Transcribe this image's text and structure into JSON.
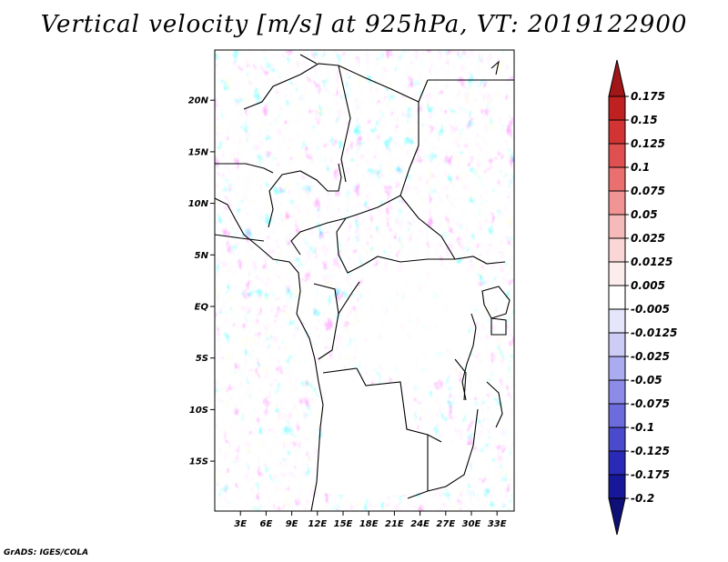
{
  "title": "Vertical velocity [m/s] at 925hPa, VT: 2019122900",
  "footer": "GrADS: IGES/COLA",
  "map": {
    "lon_range": [
      0,
      35
    ],
    "lat_range": [
      -20,
      24
    ],
    "lat_labels": [
      "20N",
      "15N",
      "10N",
      "5N",
      "EQ",
      "5S",
      "10S",
      "15S"
    ],
    "lon_labels": [
      "3E",
      "6E",
      "9E",
      "12E",
      "15E",
      "18E",
      "21E",
      "24E",
      "27E",
      "30E",
      "33E"
    ]
  },
  "colorbar": {
    "levels": [
      "0.175",
      "0.15",
      "0.125",
      "0.1",
      "0.075",
      "0.05",
      "0.025",
      "0.0125",
      "0.005",
      "-0.005",
      "-0.0125",
      "-0.025",
      "-0.05",
      "-0.075",
      "-0.1",
      "-0.125",
      "-0.175",
      "-0.2"
    ],
    "colors": [
      "#a11616",
      "#bf2020",
      "#d23434",
      "#e05050",
      "#ea7070",
      "#f19494",
      "#f7baba",
      "#fbd6d6",
      "#fdecec",
      "#ffffff",
      "#e5e5fb",
      "#ccccf6",
      "#ababf0",
      "#8c8ce8",
      "#6c6cdd",
      "#4a4acd",
      "#2a2ab8",
      "#17179a",
      "#0f0f78"
    ]
  }
}
